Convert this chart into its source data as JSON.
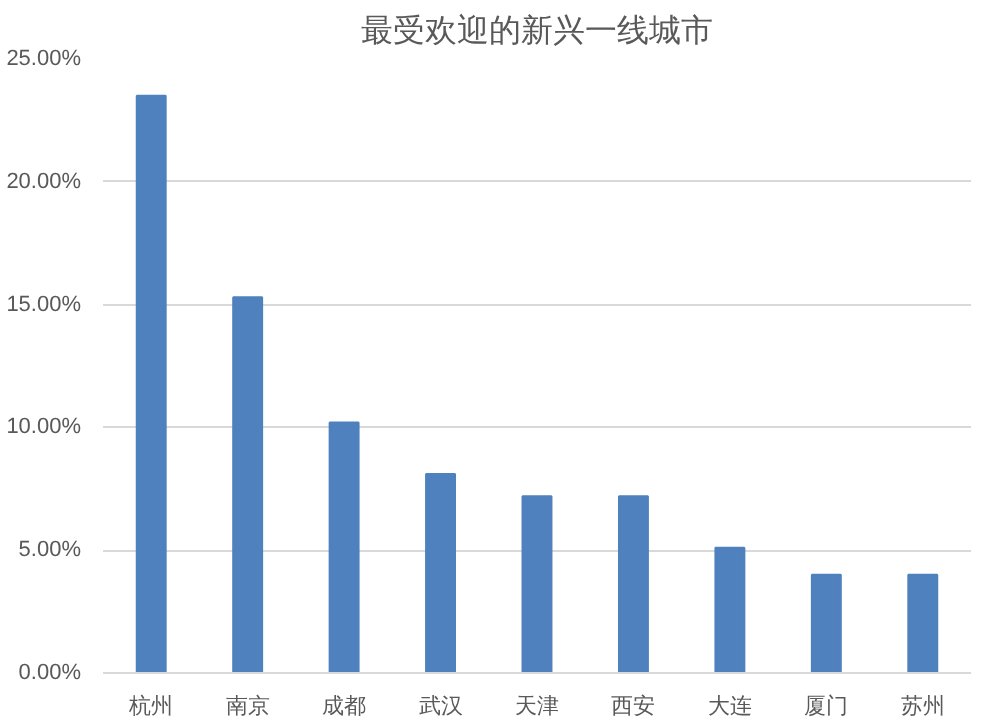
{
  "chart_data": {
    "type": "bar",
    "title": "最受欢迎的新兴一线城市",
    "categories": [
      "杭州",
      "南京",
      "成都",
      "武汉",
      "天津",
      "西安",
      "大连",
      "厦门",
      "苏州"
    ],
    "values": [
      23.5,
      15.3,
      10.2,
      8.1,
      7.2,
      7.2,
      5.1,
      4.0,
      4.0
    ],
    "color": "#4e81bd",
    "ylim": [
      0,
      25
    ],
    "yticks": [
      {
        "value": 0,
        "label": "0.00%"
      },
      {
        "value": 5,
        "label": "5.00%"
      },
      {
        "value": 10,
        "label": "10.00%"
      },
      {
        "value": 15,
        "label": "15.00%"
      },
      {
        "value": 20,
        "label": "20.00%"
      },
      {
        "value": 25,
        "label": "25.00%"
      }
    ],
    "grid": "y"
  }
}
